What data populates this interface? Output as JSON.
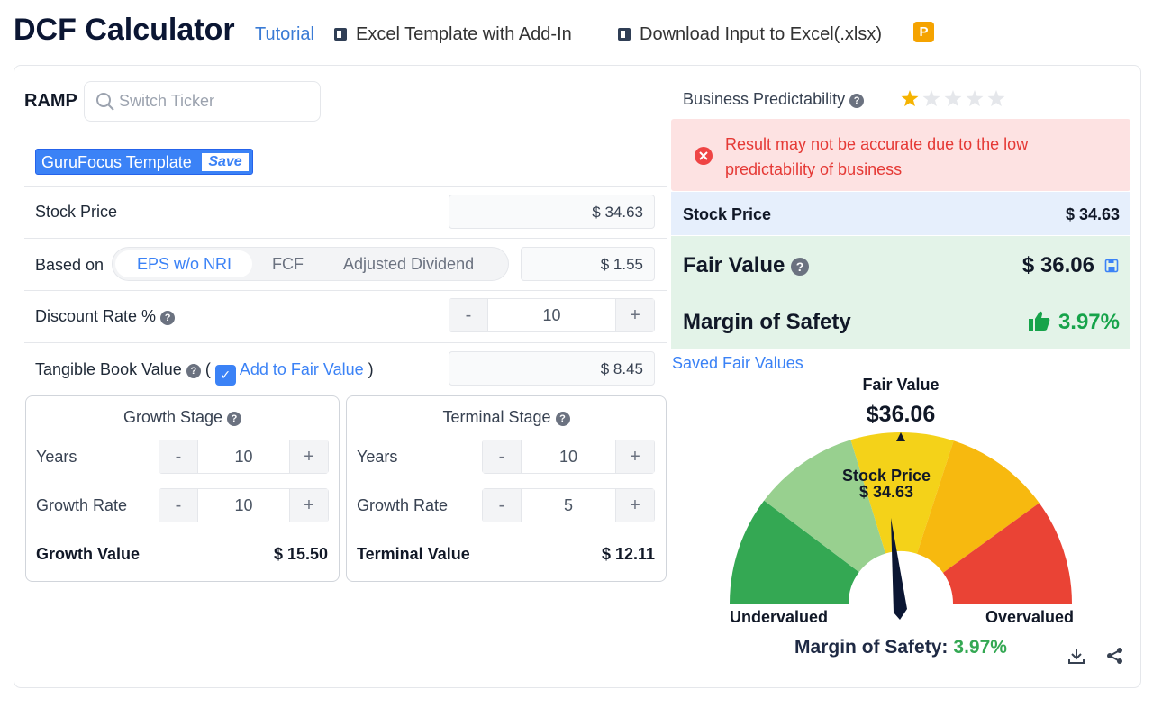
{
  "header": {
    "title": "DCF Calculator",
    "links": [
      "Tutorial",
      "Excel Template with Add-In",
      "Download Input to Excel(.xlsx)"
    ],
    "badge": "P"
  },
  "left": {
    "ticker": "RAMP",
    "search_placeholder": "Switch Ticker",
    "template": "GuruFocus Template",
    "save": "Save",
    "stepper": {
      "minus": "-",
      "plus": "+"
    },
    "stock_price": {
      "label": "Stock Price",
      "value": "$ 34.63"
    },
    "based_on": {
      "label": "Based on",
      "options": [
        "EPS w/o NRI",
        "FCF",
        "Adjusted Dividend"
      ],
      "value": "$ 1.55"
    },
    "discount_rate": {
      "label": "Discount Rate %",
      "value": "10"
    },
    "tangible_book": {
      "label": "Tangible Book Value",
      "open": "(",
      "checkbox": "Add to Fair Value",
      "close": ")",
      "value": "$ 8.45"
    },
    "growth_stage": {
      "title": "Growth Stage",
      "years_label": "Years",
      "years": "10",
      "rate_label": "Growth Rate",
      "rate": "10",
      "value_label": "Growth Value",
      "value": "$ 15.50"
    },
    "terminal_stage": {
      "title": "Terminal Stage",
      "years_label": "Years",
      "years": "10",
      "rate_label": "Growth Rate",
      "rate": "5",
      "value_label": "Terminal Value",
      "value": "$ 12.11"
    }
  },
  "right": {
    "predictability_label": "Business Predictability",
    "predictability_stars": 1,
    "warning": "Result may not be accurate due to the low predictability of business",
    "stock_price": {
      "label": "Stock Price",
      "value": "$ 34.63"
    },
    "fair_value": {
      "label": "Fair Value",
      "value": "$ 36.06"
    },
    "margin": {
      "label": "Margin of Safety",
      "value": "3.97%"
    },
    "saved_link": "Saved Fair Values",
    "gauge": {
      "fair_value_label": "Fair Value",
      "fair_value": "$36.06",
      "stock_price_label": "Stock Price",
      "stock_price": "$ 34.63",
      "left_label": "Undervalued",
      "right_label": "Overvalued",
      "margin_label": "Margin of Safety:",
      "margin_value": "3.97%"
    }
  }
}
